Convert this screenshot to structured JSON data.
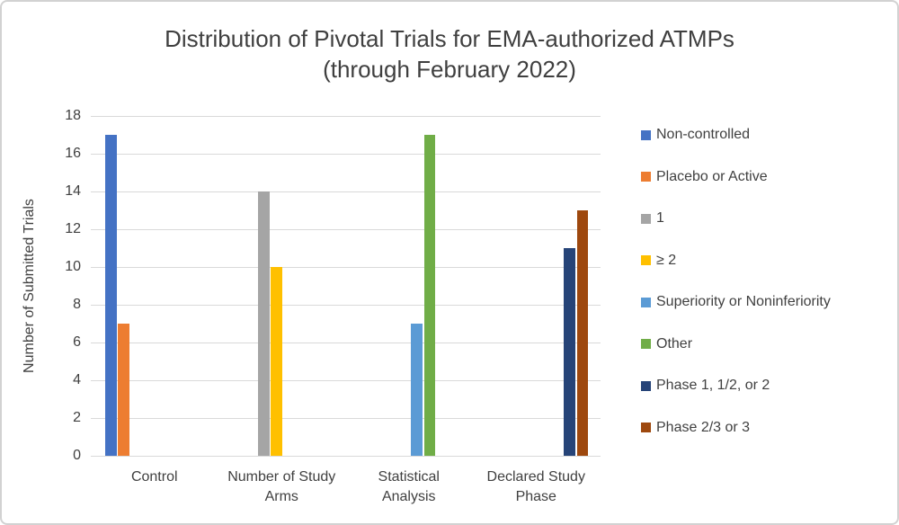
{
  "chart_data": {
    "type": "bar",
    "title": "Distribution of Pivotal Trials for EMA-authorized ATMPs",
    "subtitle": "(through February 2022)",
    "ylabel": "Number of Submitted Trials",
    "ylim": [
      0,
      18
    ],
    "yticks": [
      0,
      2,
      4,
      6,
      8,
      10,
      12,
      14,
      16,
      18
    ],
    "grid": true,
    "legend_position": "right",
    "categories": [
      "Control",
      "Number of Study Arms",
      "Statistical Analysis",
      "Declared Study Phase"
    ],
    "series": [
      {
        "name": "Non-controlled",
        "color": "#4472C4",
        "category": "Control",
        "value": 17
      },
      {
        "name": "Placebo or Active",
        "color": "#ED7D31",
        "category": "Control",
        "value": 7
      },
      {
        "name": "1",
        "color": "#A5A5A5",
        "category": "Number of Study Arms",
        "value": 14
      },
      {
        "name": "≥ 2",
        "color": "#FFC000",
        "category": "Number of Study Arms",
        "value": 10
      },
      {
        "name": "Superiority or Noninferiority",
        "color": "#5B9BD5",
        "category": "Statistical Analysis",
        "value": 7
      },
      {
        "name": "Other",
        "color": "#70AD47",
        "category": "Statistical Analysis",
        "value": 17
      },
      {
        "name": "Phase 1, 1/2, or 2",
        "color": "#264478",
        "category": "Declared Study Phase",
        "value": 11
      },
      {
        "name": "Phase 2/3 or 3",
        "color": "#9E480E",
        "category": "Declared Study Phase",
        "value": 13
      }
    ]
  }
}
